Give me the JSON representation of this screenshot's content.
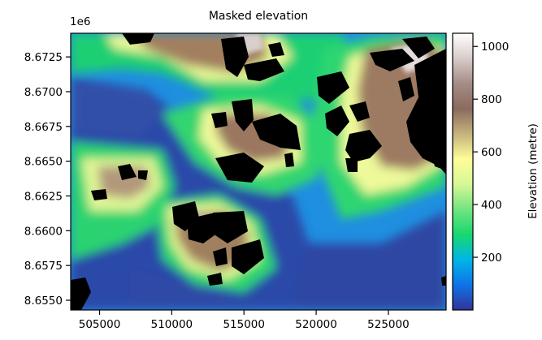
{
  "chart_data": {
    "type": "heatmap",
    "title": "Masked elevation",
    "offset_label": "1e6",
    "x_ticks": [
      {
        "value": 505000,
        "label": "505000"
      },
      {
        "value": 510000,
        "label": "510000"
      },
      {
        "value": 515000,
        "label": "515000"
      },
      {
        "value": 520000,
        "label": "520000"
      },
      {
        "value": 525000,
        "label": "525000"
      }
    ],
    "y_ticks": [
      {
        "value": 8.655,
        "label": "8.6550"
      },
      {
        "value": 8.6575,
        "label": "8.6575"
      },
      {
        "value": 8.66,
        "label": "8.6600"
      },
      {
        "value": 8.6625,
        "label": "8.6625"
      },
      {
        "value": 8.665,
        "label": "8.6650"
      },
      {
        "value": 8.6675,
        "label": "8.6675"
      },
      {
        "value": 8.67,
        "label": "8.6700"
      },
      {
        "value": 8.6725,
        "label": "8.6725"
      }
    ],
    "xlim": [
      503000,
      529000
    ],
    "ylim": [
      8.6543,
      8.6742
    ],
    "colorbar": {
      "label": "Elevation (metre)",
      "range": [
        0,
        1050
      ],
      "ticks": [
        {
          "value": 200,
          "label": "200"
        },
        {
          "value": 400,
          "label": "400"
        },
        {
          "value": 600,
          "label": "600"
        },
        {
          "value": 800,
          "label": "800"
        },
        {
          "value": 1000,
          "label": "1000"
        }
      ],
      "colormap": "terrain",
      "stops": [
        "#333399",
        "#0f73e7",
        "#00b6e6",
        "#17d86e",
        "#72e480",
        "#d7f897",
        "#fefd98",
        "#c6b27d",
        "#8b6a5e",
        "#a58c86",
        "#d8ccc9",
        "#ffffff"
      ]
    },
    "mask_color": "#000000"
  }
}
